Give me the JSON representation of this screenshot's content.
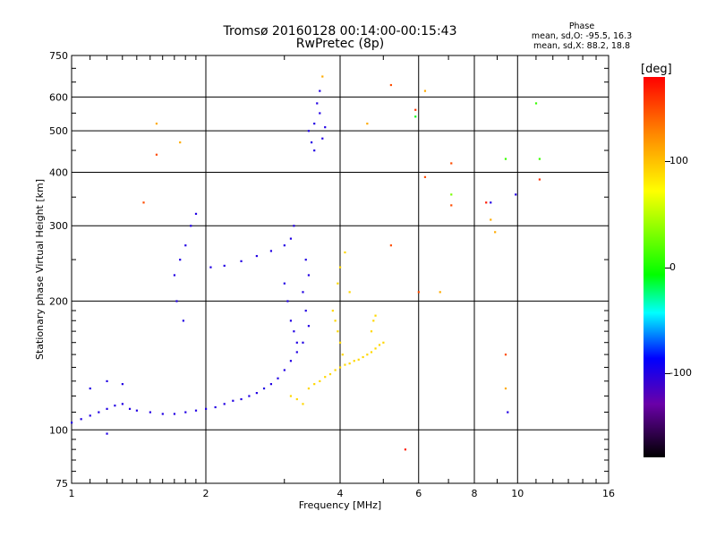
{
  "header": {
    "title_line1": "Tromsø 20160128 00:14:00-00:15:43",
    "title_line2": "RwPretec (8p)",
    "phase_title": "Phase",
    "phase_line1": "mean, sd,O: -95.5, 16.3",
    "phase_line2": "mean, sd,X: 88.2, 18.8"
  },
  "colorbar": {
    "unit_label": "[deg]",
    "tick_labels": [
      "100",
      "0",
      "-100"
    ],
    "tick_values": [
      100,
      0,
      -100
    ],
    "range": [
      -180,
      180
    ]
  },
  "chart_data": {
    "type": "scatter",
    "title": "Tromsø 20160128 00:14:00-00:15:43",
    "subtitle": "RwPretec (8p)",
    "xlabel": "Frequency [MHz]",
    "ylabel": "Stationary phase Virtual Height [km]",
    "xscale": "log",
    "yscale": "log",
    "xlim": [
      1,
      16
    ],
    "ylim": [
      75,
      750
    ],
    "x_ticks": [
      1,
      2,
      4,
      6,
      8,
      10,
      16
    ],
    "x_tick_labels": [
      "1",
      "2",
      "4",
      "6",
      "8",
      "10",
      "16"
    ],
    "y_ticks": [
      75,
      100,
      200,
      300,
      400,
      500,
      600,
      750
    ],
    "y_tick_labels": [
      "75",
      "100",
      "200",
      "300",
      "400",
      "500",
      "600",
      "750"
    ],
    "grid": true,
    "color_by": "phase [deg]",
    "trace_o_mode": {
      "color_phase": -100,
      "points": [
        [
          1.0,
          104
        ],
        [
          1.05,
          106
        ],
        [
          1.1,
          108
        ],
        [
          1.15,
          110
        ],
        [
          1.2,
          112
        ],
        [
          1.25,
          114
        ],
        [
          1.3,
          115
        ],
        [
          1.35,
          112
        ],
        [
          1.4,
          111
        ],
        [
          1.5,
          110
        ],
        [
          1.6,
          109
        ],
        [
          1.7,
          109
        ],
        [
          1.8,
          110
        ],
        [
          1.9,
          111
        ],
        [
          2.0,
          112
        ],
        [
          2.1,
          113
        ],
        [
          2.2,
          115
        ],
        [
          2.3,
          117
        ],
        [
          2.4,
          118
        ],
        [
          2.5,
          120
        ],
        [
          2.6,
          122
        ],
        [
          2.7,
          125
        ],
        [
          2.8,
          128
        ],
        [
          2.9,
          132
        ],
        [
          3.0,
          138
        ],
        [
          3.1,
          145
        ],
        [
          3.2,
          152
        ],
        [
          3.3,
          160
        ],
        [
          1.1,
          125
        ],
        [
          1.2,
          130
        ],
        [
          1.3,
          128
        ],
        [
          1.75,
          250
        ],
        [
          1.8,
          270
        ],
        [
          1.85,
          300
        ],
        [
          1.9,
          320
        ],
        [
          1.7,
          230
        ],
        [
          1.72,
          200
        ],
        [
          1.78,
          180
        ],
        [
          2.05,
          240
        ],
        [
          2.2,
          242
        ],
        [
          2.4,
          248
        ],
        [
          2.6,
          255
        ],
        [
          2.8,
          262
        ],
        [
          3.0,
          270
        ],
        [
          3.1,
          280
        ],
        [
          3.15,
          300
        ],
        [
          3.0,
          220
        ],
        [
          3.05,
          200
        ],
        [
          3.1,
          180
        ],
        [
          3.15,
          170
        ],
        [
          3.2,
          160
        ],
        [
          3.35,
          250
        ],
        [
          3.4,
          230
        ],
        [
          3.3,
          210
        ],
        [
          3.35,
          190
        ],
        [
          3.4,
          175
        ],
        [
          3.45,
          470
        ],
        [
          3.5,
          520
        ],
        [
          3.55,
          580
        ],
        [
          3.6,
          620
        ],
        [
          3.5,
          450
        ],
        [
          3.4,
          500
        ],
        [
          3.6,
          550
        ],
        [
          3.65,
          480
        ],
        [
          3.7,
          510
        ]
      ]
    },
    "trace_x_mode": {
      "color_phase": 90,
      "points": [
        [
          3.4,
          125
        ],
        [
          3.5,
          128
        ],
        [
          3.6,
          130
        ],
        [
          3.7,
          133
        ],
        [
          3.8,
          135
        ],
        [
          3.9,
          138
        ],
        [
          4.0,
          140
        ],
        [
          4.1,
          142
        ],
        [
          4.2,
          143
        ],
        [
          4.3,
          145
        ],
        [
          4.4,
          146
        ],
        [
          4.5,
          148
        ],
        [
          4.6,
          150
        ],
        [
          4.7,
          152
        ],
        [
          4.8,
          155
        ],
        [
          4.9,
          158
        ],
        [
          5.0,
          160
        ],
        [
          3.9,
          180
        ],
        [
          3.95,
          170
        ],
        [
          4.0,
          160
        ],
        [
          4.05,
          150
        ],
        [
          3.85,
          190
        ],
        [
          4.7,
          170
        ],
        [
          4.75,
          180
        ],
        [
          4.8,
          185
        ],
        [
          3.1,
          120
        ],
        [
          3.2,
          118
        ],
        [
          3.3,
          115
        ],
        [
          4.1,
          260
        ],
        [
          4.0,
          240
        ],
        [
          3.95,
          220
        ],
        [
          4.2,
          210
        ]
      ]
    },
    "scattered_points": [
      {
        "x": 1.45,
        "y": 340,
        "phase": 150
      },
      {
        "x": 1.55,
        "y": 520,
        "phase": 110
      },
      {
        "x": 1.55,
        "y": 440,
        "phase": 150
      },
      {
        "x": 1.75,
        "y": 470,
        "phase": 110
      },
      {
        "x": 3.65,
        "y": 670,
        "phase": 110
      },
      {
        "x": 4.6,
        "y": 520,
        "phase": 110
      },
      {
        "x": 5.2,
        "y": 640,
        "phase": 150
      },
      {
        "x": 5.9,
        "y": 560,
        "phase": 160
      },
      {
        "x": 5.9,
        "y": 540,
        "phase": -10
      },
      {
        "x": 6.2,
        "y": 620,
        "phase": 110
      },
      {
        "x": 6.2,
        "y": 390,
        "phase": 150
      },
      {
        "x": 7.1,
        "y": 420,
        "phase": 150
      },
      {
        "x": 7.1,
        "y": 355,
        "phase": 30
      },
      {
        "x": 7.1,
        "y": 335,
        "phase": 150
      },
      {
        "x": 8.5,
        "y": 340,
        "phase": 170
      },
      {
        "x": 8.7,
        "y": 340,
        "phase": -100
      },
      {
        "x": 8.7,
        "y": 310,
        "phase": 110
      },
      {
        "x": 8.9,
        "y": 290,
        "phase": 110
      },
      {
        "x": 9.4,
        "y": 430,
        "phase": 10
      },
      {
        "x": 9.4,
        "y": 150,
        "phase": 150
      },
      {
        "x": 9.4,
        "y": 125,
        "phase": 110
      },
      {
        "x": 9.5,
        "y": 110,
        "phase": -100
      },
      {
        "x": 9.9,
        "y": 355,
        "phase": -100
      },
      {
        "x": 11.0,
        "y": 580,
        "phase": 10
      },
      {
        "x": 11.2,
        "y": 430,
        "phase": 10
      },
      {
        "x": 11.2,
        "y": 385,
        "phase": 160
      },
      {
        "x": 6.0,
        "y": 210,
        "phase": 150
      },
      {
        "x": 6.7,
        "y": 210,
        "phase": 110
      },
      {
        "x": 5.2,
        "y": 270,
        "phase": 150
      },
      {
        "x": 5.6,
        "y": 90,
        "phase": 170
      },
      {
        "x": 1.2,
        "y": 98,
        "phase": -100
      }
    ]
  }
}
